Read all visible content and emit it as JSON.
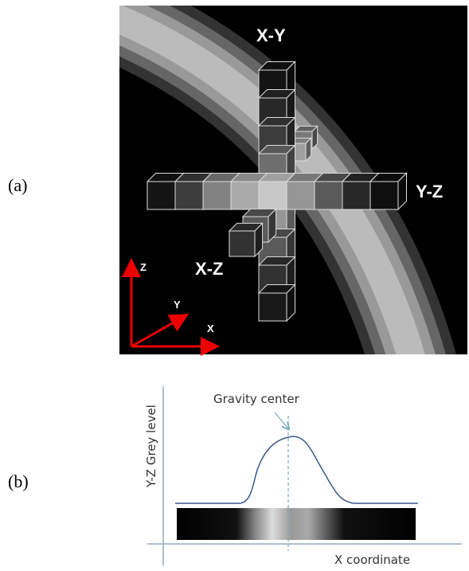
{
  "panel_a": {
    "label": "(a)",
    "planes": {
      "xy": "X-Y",
      "yz": "Y-Z",
      "xz": "X-Z"
    },
    "axes": {
      "z": "Z",
      "y": "Y",
      "x": "X"
    }
  },
  "panel_b": {
    "label": "(b)",
    "annotation": "Gravity center",
    "y_axis_label": "Y-Z Grey level",
    "x_axis_label": "X coordinate"
  }
}
